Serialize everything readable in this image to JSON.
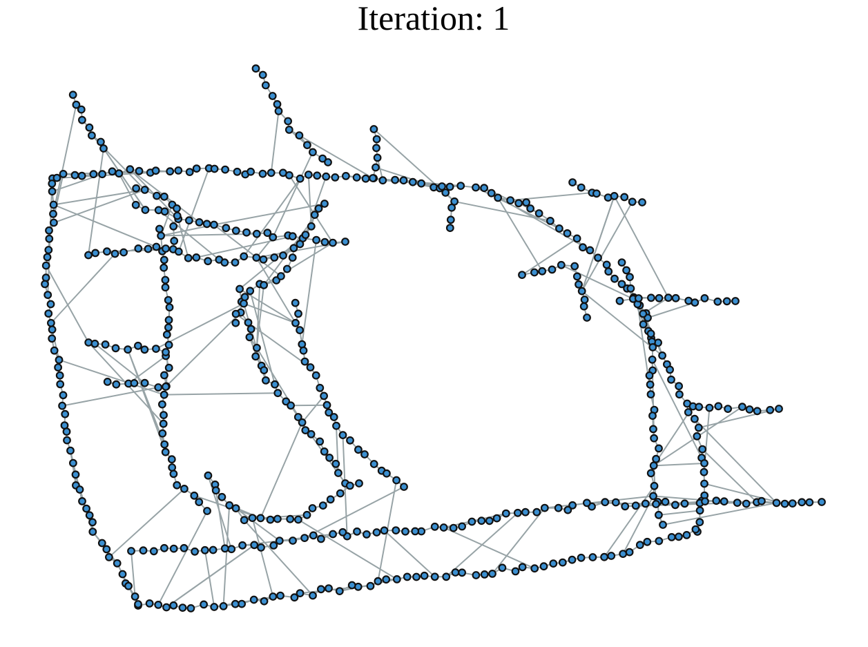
{
  "header": {
    "title": "Iteration: 1"
  }
}
